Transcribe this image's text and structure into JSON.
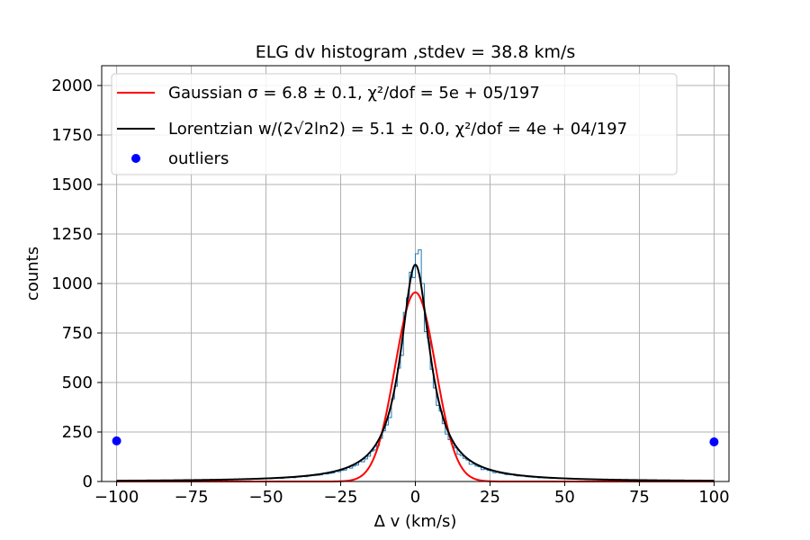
{
  "chart_data": {
    "type": "histogram",
    "title": "ELG dv histogram ,stdev = 38.8 km/s",
    "xlabel": "Δ v (km/s)",
    "ylabel": "counts",
    "xlim": [
      -105,
      105
    ],
    "ylim": [
      0,
      2100
    ],
    "xticks": [
      -100,
      -75,
      -50,
      -25,
      0,
      25,
      50,
      75,
      100
    ],
    "xtick_labels": [
      "−100",
      "−75",
      "−50",
      "−25",
      "0",
      "25",
      "50",
      "75",
      "100"
    ],
    "yticks": [
      0,
      250,
      500,
      750,
      1000,
      1250,
      1500,
      1750,
      2000
    ],
    "ytick_labels": [
      "0",
      "250",
      "500",
      "750",
      "1000",
      "1250",
      "1500",
      "1750",
      "2000"
    ],
    "grid": true,
    "legend_location": "upper left",
    "series": [
      {
        "name": "Gaussian σ = 6.8 ± 0.1, χ²/dof = 5e + 05/197",
        "kind": "line",
        "color": "#ff0000",
        "model": "gaussian",
        "amplitude": 955,
        "center": 0,
        "sigma": 6.8,
        "x_range": [
          -100,
          100
        ]
      },
      {
        "name": "Lorentzian w/(2√2ln2) = 5.1 ± 0.0, χ²/dof = 4e + 04/197",
        "kind": "line",
        "color": "#000000",
        "model": "lorentzian",
        "amplitude": 1095,
        "center": 0,
        "gamma": 6.0,
        "x_range": [
          -100,
          100
        ]
      },
      {
        "name": "outliers",
        "kind": "scatter",
        "color": "#0000ff",
        "points": [
          [
            -100,
            205
          ],
          [
            100,
            200
          ]
        ]
      },
      {
        "name": "",
        "kind": "histogram",
        "color": "#1f77b4",
        "bin_edges_range": [
          -100,
          100
        ],
        "bin_width": 1,
        "model_gamma": 5.6,
        "model_amplitude": 1120,
        "peak_values": [
          {
            "x": -1,
            "y": 1030
          },
          {
            "x": 0,
            "y": 1150
          },
          {
            "x": 1,
            "y": 1170
          },
          {
            "x": 2,
            "y": 1000
          }
        ]
      }
    ]
  }
}
